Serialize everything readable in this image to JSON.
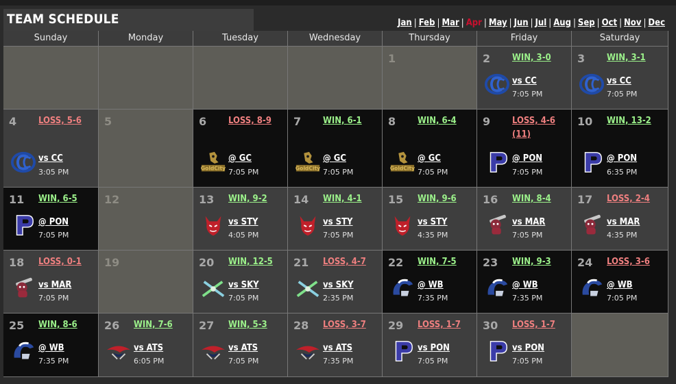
{
  "title": "TEAM SCHEDULE",
  "months": [
    {
      "label": "Jan",
      "active": false
    },
    {
      "label": "Feb",
      "active": false
    },
    {
      "label": "Mar",
      "active": false
    },
    {
      "label": "Apr",
      "active": true
    },
    {
      "label": "May",
      "active": false
    },
    {
      "label": "Jun",
      "active": false
    },
    {
      "label": "Jul",
      "active": false
    },
    {
      "label": "Aug",
      "active": false
    },
    {
      "label": "Sep",
      "active": false
    },
    {
      "label": "Oct",
      "active": false
    },
    {
      "label": "Nov",
      "active": false
    },
    {
      "label": "Dec",
      "active": false
    }
  ],
  "weekdays": [
    "Sunday",
    "Monday",
    "Tuesday",
    "Wednesday",
    "Thursday",
    "Friday",
    "Saturday"
  ],
  "colors": {
    "win": "#9bf08a",
    "loss": "#ee7f7f",
    "active_month": "#c8102e"
  },
  "weeks": [
    [
      {
        "day": "",
        "status": "empty"
      },
      {
        "day": "",
        "status": "empty"
      },
      {
        "day": "",
        "status": "empty"
      },
      {
        "day": "",
        "status": "empty"
      },
      {
        "day": "1",
        "status": "empty"
      },
      {
        "day": "2",
        "status": "home",
        "result": "WIN, 3-0",
        "outcome": "win",
        "opponent": "vs CC",
        "time": "7:05 PM",
        "logo": "cc-logo-icon"
      },
      {
        "day": "3",
        "status": "home",
        "result": "WIN, 3-1",
        "outcome": "win",
        "opponent": "vs CC",
        "time": "7:05 PM",
        "logo": "cc-logo-icon"
      }
    ],
    [
      {
        "day": "4",
        "status": "home",
        "result": "LOSS, 5-6",
        "outcome": "loss",
        "opponent": "vs CC",
        "time": "3:05 PM",
        "logo": "cc-logo-icon"
      },
      {
        "day": "5",
        "status": "empty"
      },
      {
        "day": "6",
        "status": "away",
        "result": "LOSS, 8-9",
        "outcome": "loss",
        "opponent": "@ GC",
        "time": "7:05 PM",
        "logo": "gc-logo-icon"
      },
      {
        "day": "7",
        "status": "away",
        "result": "WIN, 6-1",
        "outcome": "win",
        "opponent": "@ GC",
        "time": "7:05 PM",
        "logo": "gc-logo-icon"
      },
      {
        "day": "8",
        "status": "away",
        "result": "WIN, 6-4",
        "outcome": "win",
        "opponent": "@ GC",
        "time": "7:05 PM",
        "logo": "gc-logo-icon"
      },
      {
        "day": "9",
        "status": "away",
        "result": "LOSS, 4-6 (11)",
        "outcome": "loss",
        "opponent": "@ PON",
        "time": "7:05 PM",
        "logo": "pon-logo-icon",
        "wide": true
      },
      {
        "day": "10",
        "status": "away",
        "result": "WIN, 13-2",
        "outcome": "win",
        "opponent": "@ PON",
        "time": "6:35 PM",
        "logo": "pon-logo-icon"
      }
    ],
    [
      {
        "day": "11",
        "status": "away",
        "result": "WIN, 6-5",
        "outcome": "win",
        "opponent": "@ PON",
        "time": "7:05 PM",
        "logo": "pon-logo-icon"
      },
      {
        "day": "12",
        "status": "empty"
      },
      {
        "day": "13",
        "status": "home",
        "result": "WIN, 9-2",
        "outcome": "win",
        "opponent": "vs STY",
        "time": "4:05 PM",
        "logo": "sty-logo-icon"
      },
      {
        "day": "14",
        "status": "home",
        "result": "WIN, 4-1",
        "outcome": "win",
        "opponent": "vs STY",
        "time": "7:05 PM",
        "logo": "sty-logo-icon"
      },
      {
        "day": "15",
        "status": "home",
        "result": "WIN, 9-6",
        "outcome": "win",
        "opponent": "vs STY",
        "time": "4:35 PM",
        "logo": "sty-logo-icon"
      },
      {
        "day": "16",
        "status": "home",
        "result": "WIN, 8-4",
        "outcome": "win",
        "opponent": "vs MAR",
        "time": "7:05 PM",
        "logo": "mar-logo-icon"
      },
      {
        "day": "17",
        "status": "home",
        "result": "LOSS, 2-4",
        "outcome": "loss",
        "opponent": "vs MAR",
        "time": "4:35 PM",
        "logo": "mar-logo-icon"
      }
    ],
    [
      {
        "day": "18",
        "status": "home",
        "result": "LOSS, 0-1",
        "outcome": "loss",
        "opponent": "vs MAR",
        "time": "7:05 PM",
        "logo": "mar-logo-icon"
      },
      {
        "day": "19",
        "status": "empty"
      },
      {
        "day": "20",
        "status": "home",
        "result": "WIN, 12-5",
        "outcome": "win",
        "opponent": "vs SKY",
        "time": "7:05 PM",
        "logo": "sky-logo-icon"
      },
      {
        "day": "21",
        "status": "home",
        "result": "LOSS, 4-7",
        "outcome": "loss",
        "opponent": "vs SKY",
        "time": "2:35 PM",
        "logo": "sky-logo-icon"
      },
      {
        "day": "22",
        "status": "away",
        "result": "WIN, 7-5",
        "outcome": "win",
        "opponent": "@ WB",
        "time": "7:35 PM",
        "logo": "wb-logo-icon"
      },
      {
        "day": "23",
        "status": "away",
        "result": "WIN, 9-3",
        "outcome": "win",
        "opponent": "@ WB",
        "time": "7:35 PM",
        "logo": "wb-logo-icon"
      },
      {
        "day": "24",
        "status": "away",
        "result": "LOSS, 3-6",
        "outcome": "loss",
        "opponent": "@ WB",
        "time": "7:05 PM",
        "logo": "wb-logo-icon"
      }
    ],
    [
      {
        "day": "25",
        "status": "away",
        "result": "WIN, 8-6",
        "outcome": "win",
        "opponent": "@ WB",
        "time": "7:35 PM",
        "logo": "wb-logo-icon"
      },
      {
        "day": "26",
        "status": "home",
        "result": "WIN, 7-6",
        "outcome": "win",
        "opponent": "vs ATS",
        "time": "6:05 PM",
        "logo": "ats-logo-icon"
      },
      {
        "day": "27",
        "status": "home",
        "result": "WIN, 5-3",
        "outcome": "win",
        "opponent": "vs ATS",
        "time": "7:05 PM",
        "logo": "ats-logo-icon"
      },
      {
        "day": "28",
        "status": "home",
        "result": "LOSS, 3-7",
        "outcome": "loss",
        "opponent": "vs ATS",
        "time": "7:35 PM",
        "logo": "ats-logo-icon"
      },
      {
        "day": "29",
        "status": "home",
        "result": "LOSS, 1-7",
        "outcome": "loss",
        "opponent": "vs PON",
        "time": "7:05 PM",
        "logo": "pon-logo-icon"
      },
      {
        "day": "30",
        "status": "home",
        "result": "LOSS, 1-7",
        "outcome": "loss",
        "opponent": "vs PON",
        "time": "7:05 PM",
        "logo": "pon-logo-icon"
      },
      {
        "day": "",
        "status": "empty"
      }
    ]
  ]
}
